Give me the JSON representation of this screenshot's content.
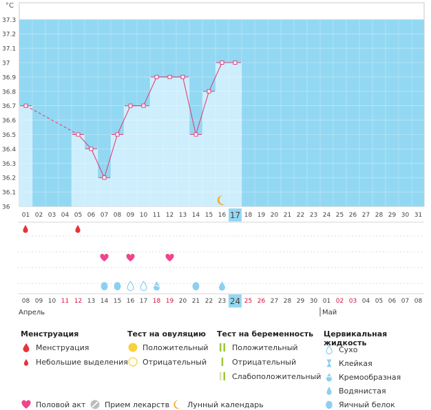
{
  "chart_data": {
    "type": "line",
    "unit_label": "°C",
    "ylim": [
      36.0,
      37.3
    ],
    "y_ticks": [
      "36",
      "36.1",
      "36.2",
      "36.3",
      "36.4",
      "36.5",
      "36.6",
      "36.7",
      "36.8",
      "36.9",
      "37",
      "37.1",
      "37.2",
      "37.3"
    ],
    "y_tick_values": [
      36.0,
      36.1,
      36.2,
      36.3,
      36.4,
      36.5,
      36.6,
      36.7,
      36.8,
      36.9,
      37.0,
      37.1,
      37.2,
      37.3
    ],
    "cycle_days": [
      "01",
      "02",
      "03",
      "04",
      "05",
      "06",
      "07",
      "08",
      "09",
      "10",
      "11",
      "12",
      "13",
      "14",
      "15",
      "16",
      "17",
      "18",
      "19",
      "20",
      "21",
      "22",
      "23",
      "24",
      "25",
      "26",
      "27",
      "28",
      "29",
      "30",
      "31"
    ],
    "calendar_dates": [
      "08",
      "09",
      "10",
      "11",
      "12",
      "13",
      "14",
      "15",
      "16",
      "17",
      "18",
      "19",
      "20",
      "21",
      "22",
      "23",
      "24",
      "25",
      "26",
      "27",
      "28",
      "29",
      "30",
      "01",
      "02",
      "03",
      "04",
      "05",
      "06",
      "07",
      "08"
    ],
    "weekend_date_indices": [
      3,
      4,
      10,
      11,
      17,
      18,
      24,
      25
    ],
    "current_day_index": 16,
    "months": [
      {
        "label": "Апрель",
        "start_index": 0
      },
      {
        "label": "Май",
        "start_index": 23
      }
    ],
    "temperatures": [
      36.7,
      null,
      null,
      null,
      36.5,
      36.4,
      36.2,
      36.5,
      36.7,
      36.7,
      36.9,
      36.9,
      36.9,
      36.5,
      36.8,
      37.0,
      37.0
    ],
    "dashed_gap": [
      0,
      4
    ],
    "line_color": "#e0407a",
    "bar_color": "#cdeefc",
    "background_color": "#93d8f2",
    "menstruation_days": [
      0,
      4
    ],
    "intercourse_days": [
      6,
      8,
      11
    ],
    "moon_day": 15,
    "cervical_days": [
      {
        "day": 6,
        "type": "egg-white"
      },
      {
        "day": 7,
        "type": "egg-white"
      },
      {
        "day": 8,
        "type": "dry"
      },
      {
        "day": 9,
        "type": "dry"
      },
      {
        "day": 10,
        "type": "creamy"
      },
      {
        "day": 13,
        "type": "egg-white"
      },
      {
        "day": 15,
        "type": "watery"
      }
    ]
  },
  "legend": {
    "menstruation": {
      "title": "Менструация",
      "items": [
        "Менструация",
        "Небольшие выделения"
      ]
    },
    "ovulation": {
      "title": "Тест на овуляцию",
      "items": [
        "Положительный",
        "Отрицательный"
      ]
    },
    "pregnancy": {
      "title": "Тест на беременность",
      "items": [
        "Положительный",
        "Отрицательный",
        "Слабоположительный"
      ]
    },
    "cervical": {
      "title": "Цервикальная жидкость",
      "items": [
        "Сухо",
        "Клейкая",
        "Кремообразная",
        "Водянистая",
        "Яичный белок"
      ]
    },
    "bottom": {
      "intercourse": "Половой акт",
      "medication": "Прием лекарств",
      "lunar": "Лунный календарь"
    }
  },
  "colors": {
    "red_drop": "#e8323c",
    "heart": "#f0458c",
    "drop_blue": "#8ccff2",
    "moon": "#f5a623",
    "ovulation_yellow": "#f7d23c",
    "pregnancy_green": "#9ec43a",
    "weekend_text": "#d4103c"
  }
}
